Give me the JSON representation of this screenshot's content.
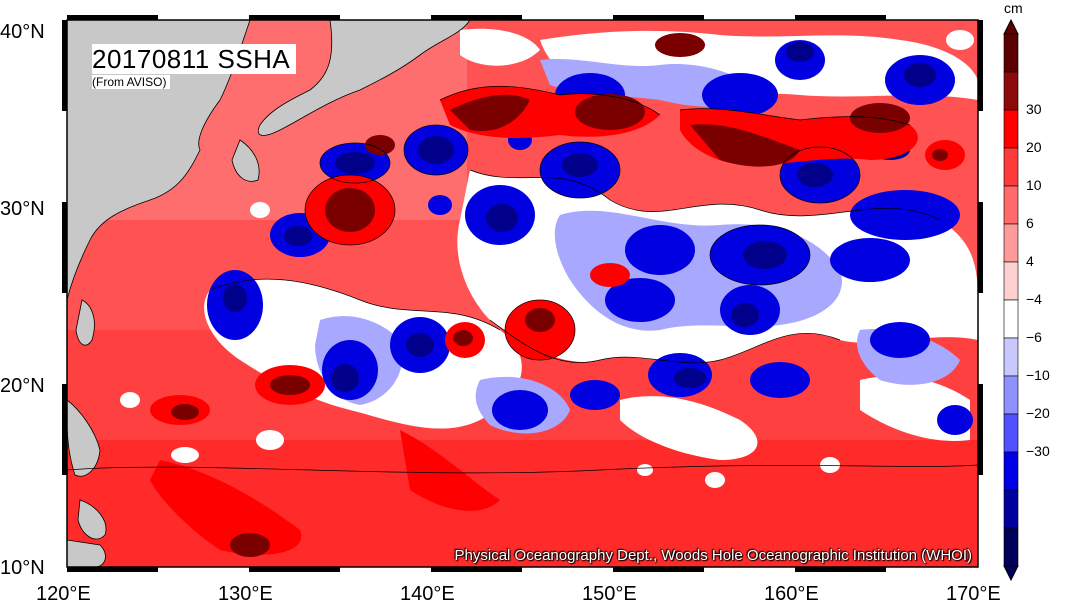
{
  "title": "20170811 SSHA",
  "subtitle": "(From AVISO)",
  "credit": "Physical Oceanography Dept., Woods Hole Oceanographic Institution (WHOI)",
  "map": {
    "lon_range": [
      120,
      170
    ],
    "lat_range": [
      10,
      40
    ],
    "x_ticks": [
      "120°E",
      "130°E",
      "140°E",
      "150°E",
      "160°E",
      "170°E"
    ],
    "y_ticks": [
      "40°N",
      "30°N",
      "20°N",
      "10°N"
    ]
  },
  "colorbar": {
    "unit": "cm",
    "labels": [
      "30",
      "20",
      "10",
      "6",
      "4",
      "−4",
      "−6",
      "−10",
      "−20",
      "−30"
    ],
    "colors": [
      "#5a0000",
      "#8b0a0a",
      "#ff0000",
      "#ff3a3a",
      "#ff6a6a",
      "#ff9a9a",
      "#ffd0d0",
      "#ffffff",
      "#c8c8ff",
      "#9090ff",
      "#5050ff",
      "#0000e6",
      "#0000a0",
      "#00005a"
    ]
  },
  "colors": {
    "land": "#c8c8c8",
    "frame": "#000000"
  }
}
